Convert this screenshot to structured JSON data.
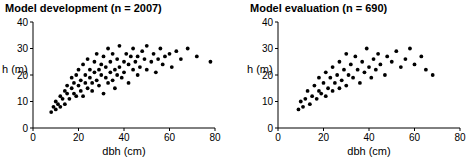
{
  "chart_data": [
    {
      "type": "scatter",
      "title": "Model development (n = 2007)",
      "x_label": "dbh (cm)",
      "y_label": "h (m)",
      "x": [
        8,
        9,
        10,
        10,
        11,
        12,
        12,
        13,
        14,
        14,
        15,
        15,
        16,
        17,
        17,
        18,
        18,
        19,
        19,
        20,
        20,
        21,
        21,
        22,
        22,
        23,
        23,
        24,
        24,
        25,
        25,
        26,
        26,
        27,
        27,
        28,
        28,
        29,
        29,
        30,
        30,
        31,
        31,
        32,
        32,
        33,
        33,
        34,
        34,
        35,
        35,
        36,
        36,
        37,
        37,
        38,
        38,
        39,
        40,
        40,
        41,
        42,
        42,
        43,
        44,
        44,
        45,
        46,
        46,
        47,
        48,
        49,
        50,
        50,
        52,
        53,
        54,
        55,
        56,
        57,
        58,
        60,
        61,
        63,
        65,
        68,
        72,
        78
      ],
      "values": [
        6,
        8,
        7,
        10,
        9,
        12,
        8,
        11,
        14,
        9,
        13,
        16,
        11,
        15,
        19,
        13,
        17,
        20,
        12,
        16,
        22,
        14,
        18,
        24,
        12,
        17,
        20,
        15,
        26,
        19,
        22,
        14,
        17,
        21,
        25,
        18,
        28,
        16,
        22,
        20,
        24,
        27,
        13,
        19,
        23,
        30,
        17,
        21,
        25,
        18,
        28,
        22,
        15,
        26,
        20,
        31,
        23,
        19,
        25,
        21,
        28,
        17,
        24,
        27,
        22,
        30,
        25,
        20,
        27,
        23,
        29,
        26,
        22,
        31,
        25,
        28,
        21,
        26,
        30,
        24,
        27,
        28,
        23,
        29,
        26,
        30,
        27,
        25
      ],
      "xlim": [
        0,
        80
      ],
      "ylim": [
        0,
        40
      ],
      "xticks": [
        0,
        20,
        40,
        60,
        80
      ],
      "yticks": [
        0,
        10,
        20,
        30,
        40
      ],
      "color": "#000000",
      "marker": "circle"
    },
    {
      "type": "scatter",
      "title": "Model evaluation (n = 690)",
      "x_label": "dbh (cm)",
      "y_label": "h (m)",
      "x": [
        9,
        10,
        11,
        12,
        13,
        14,
        15,
        16,
        17,
        18,
        18,
        19,
        20,
        21,
        21,
        22,
        23,
        24,
        24,
        25,
        26,
        27,
        27,
        28,
        29,
        30,
        30,
        31,
        32,
        33,
        34,
        35,
        36,
        37,
        38,
        39,
        40,
        41,
        42,
        43,
        44,
        45,
        47,
        48,
        50,
        52,
        54,
        56,
        58,
        60,
        63,
        65,
        68
      ],
      "values": [
        7,
        10,
        8,
        11,
        14,
        9,
        12,
        16,
        11,
        14,
        19,
        13,
        17,
        21,
        12,
        15,
        19,
        23,
        14,
        17,
        20,
        25,
        15,
        18,
        22,
        28,
        16,
        20,
        24,
        19,
        27,
        22,
        17,
        25,
        21,
        30,
        23,
        19,
        26,
        22,
        28,
        24,
        20,
        27,
        25,
        29,
        23,
        26,
        30,
        24,
        27,
        22,
        20
      ],
      "xlim": [
        0,
        80
      ],
      "ylim": [
        0,
        40
      ],
      "xticks": [
        0,
        20,
        40,
        60,
        80
      ],
      "yticks": [
        0,
        10,
        20,
        30,
        40
      ],
      "color": "#000000",
      "marker": "circle"
    }
  ]
}
